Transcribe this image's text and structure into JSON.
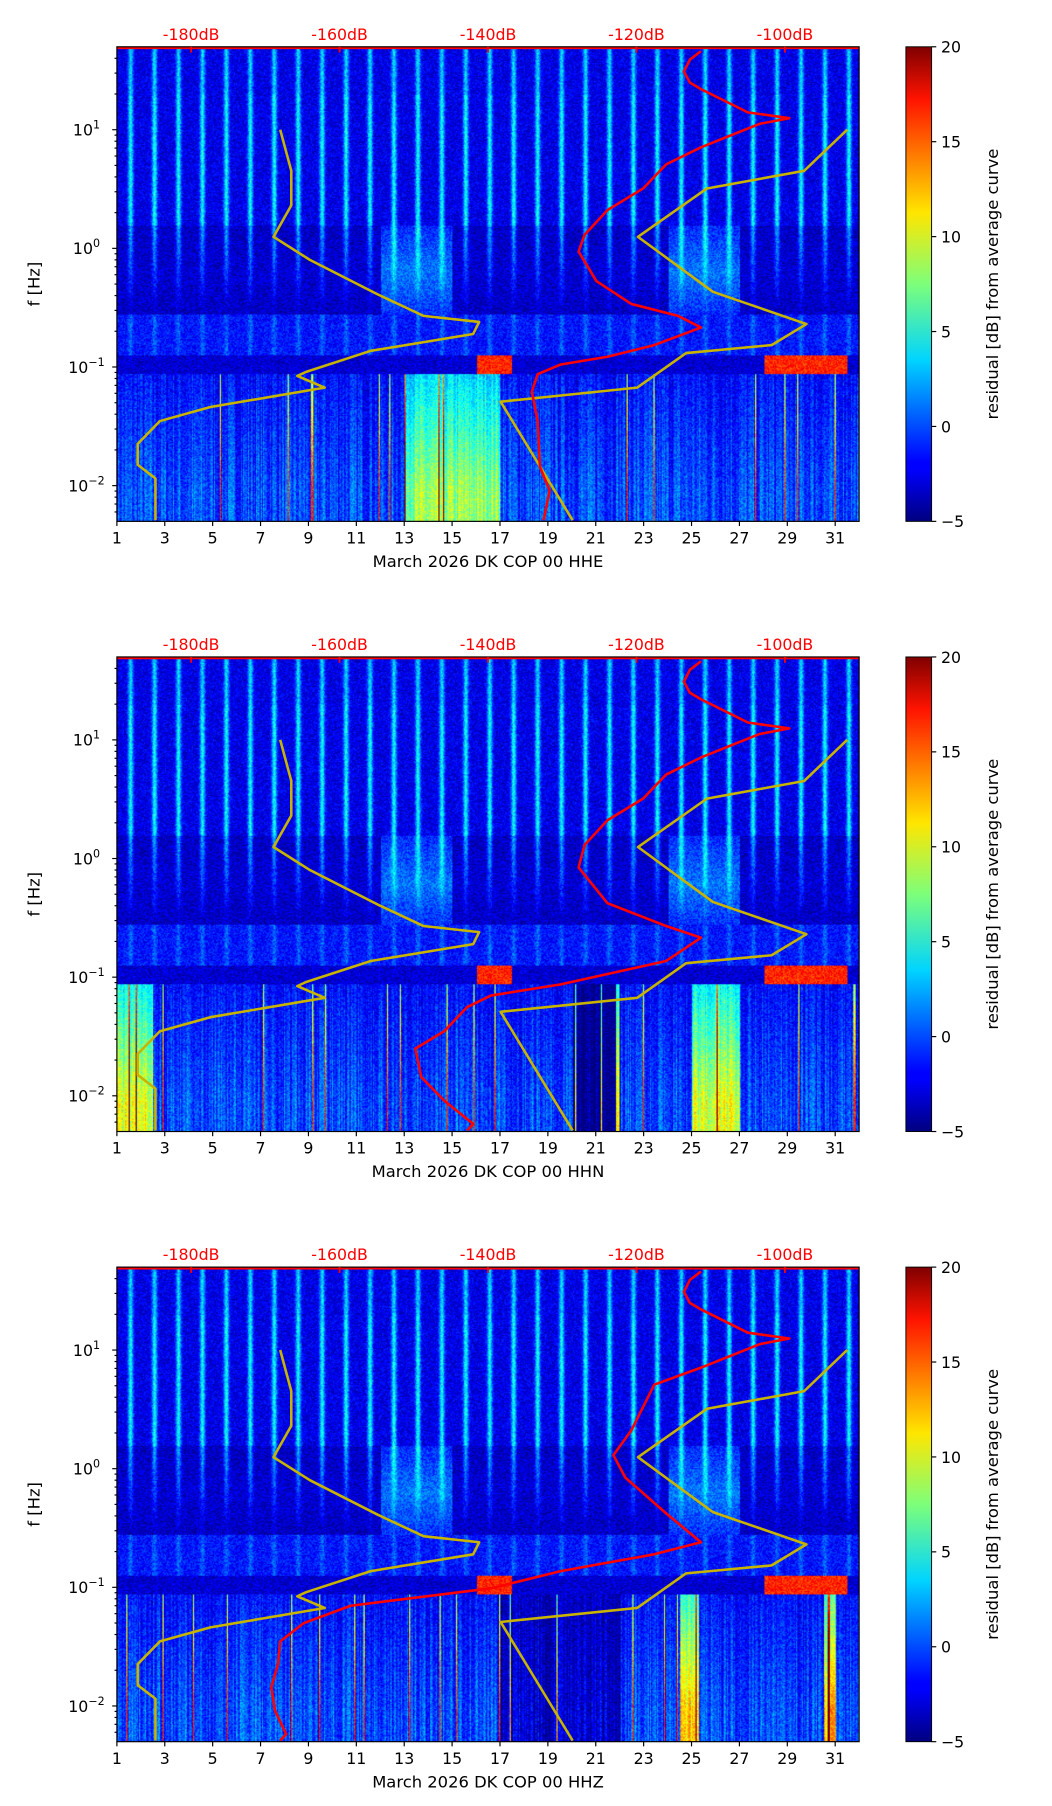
{
  "chart_data": {
    "type": "heatmap",
    "colorbar": {
      "label": "residual [dB] from average curve",
      "range": [
        -5,
        20
      ],
      "ticks": [
        "20",
        "15",
        "10",
        "5",
        "0",
        "−5"
      ],
      "tick_values": [
        20,
        15,
        10,
        5,
        0,
        -5
      ],
      "colormap": "jet"
    },
    "shared": {
      "ylabel": "f [Hz]",
      "ylim_hz": [
        0.005,
        50
      ],
      "yscale": "log",
      "yticks": [
        {
          "base": "10",
          "exp": "1",
          "value": 10
        },
        {
          "base": "10",
          "exp": "0",
          "value": 1
        },
        {
          "base": "10",
          "exp": "−1",
          "value": 0.1
        },
        {
          "base": "10",
          "exp": "−2",
          "value": 0.01
        }
      ],
      "xlim_day": [
        1,
        32
      ],
      "xticks": [
        "1",
        "3",
        "5",
        "7",
        "9",
        "11",
        "13",
        "15",
        "17",
        "19",
        "21",
        "23",
        "25",
        "27",
        "29",
        "31"
      ],
      "top_axis": {
        "range_db": [
          -190,
          -90
        ],
        "ticks": [
          "-180dB",
          "-160dB",
          "-140dB",
          "-120dB",
          "-100dB"
        ],
        "tick_values": [
          -180,
          -160,
          -140,
          -120,
          -100
        ],
        "color": "#ff0000"
      },
      "model_color": "#c8b400",
      "curve_color": "#ff0000",
      "low_noise_model": [
        [
          -168,
          10
        ],
        [
          -166.5,
          4.5
        ],
        [
          -166.5,
          2.3
        ],
        [
          -168.9,
          1.25
        ],
        [
          -164,
          0.8
        ],
        [
          -154.9,
          0.41
        ],
        [
          -148.7,
          0.27
        ],
        [
          -141.2,
          0.24
        ],
        [
          -142,
          0.19
        ],
        [
          -155.8,
          0.137
        ],
        [
          -164.5,
          0.091
        ],
        [
          -165.7,
          0.084
        ],
        [
          -162,
          0.067
        ],
        [
          -177.4,
          0.046
        ],
        [
          -184.2,
          0.035
        ],
        [
          -187.2,
          0.0225
        ],
        [
          -187.2,
          0.015
        ],
        [
          -184.8,
          0.0115
        ],
        [
          -184.8,
          0.0051
        ]
      ],
      "high_noise_model": [
        [
          -91.6,
          10
        ],
        [
          -97.4,
          4.5
        ],
        [
          -110.5,
          3.2
        ],
        [
          -119.8,
          1.25
        ],
        [
          -109.7,
          0.43
        ],
        [
          -97.1,
          0.23
        ],
        [
          -101.8,
          0.153
        ],
        [
          -113.3,
          0.131
        ],
        [
          -119.9,
          0.067
        ],
        [
          -138.3,
          0.051
        ],
        [
          -128.6,
          0.0051
        ]
      ]
    },
    "panels": [
      {
        "xlabel": "March 2026 DK COP 00 HHE",
        "median_curve": [
          [
            -111.3,
            46
          ],
          [
            -112.8,
            39
          ],
          [
            -113.6,
            31
          ],
          [
            -112.8,
            25
          ],
          [
            -111.3,
            22
          ],
          [
            -105,
            14
          ],
          [
            -99.4,
            12.5
          ],
          [
            -103.4,
            11.2
          ],
          [
            -111.3,
            7.1
          ],
          [
            -116,
            5.1
          ],
          [
            -119.1,
            3.2
          ],
          [
            -123.9,
            2.1
          ],
          [
            -127,
            1.3
          ],
          [
            -127.8,
            0.94
          ],
          [
            -125.4,
            0.53
          ],
          [
            -120.7,
            0.34
          ],
          [
            -114.4,
            0.27
          ],
          [
            -111.3,
            0.215
          ],
          [
            -117.6,
            0.153
          ],
          [
            -123.9,
            0.122
          ],
          [
            -130.2,
            0.105
          ],
          [
            -133.3,
            0.087
          ],
          [
            -134.1,
            0.062
          ],
          [
            -133.3,
            0.035
          ],
          [
            -133,
            0.0144
          ],
          [
            -131.7,
            0.0091
          ],
          [
            -132.5,
            0.0051
          ]
        ]
      },
      {
        "xlabel": "March 2026 DK COP 00 HHN",
        "median_curve": [
          [
            -111.3,
            46
          ],
          [
            -112.8,
            39
          ],
          [
            -113.6,
            31
          ],
          [
            -112.8,
            25
          ],
          [
            -111.3,
            22
          ],
          [
            -105,
            14
          ],
          [
            -99.4,
            12.5
          ],
          [
            -103.4,
            11.2
          ],
          [
            -111.3,
            7.1
          ],
          [
            -116,
            5.1
          ],
          [
            -119.1,
            3.2
          ],
          [
            -123.9,
            2.1
          ],
          [
            -127,
            1.3
          ],
          [
            -127.8,
            0.84
          ],
          [
            -123.9,
            0.42
          ],
          [
            -116,
            0.27
          ],
          [
            -111.3,
            0.215
          ],
          [
            -116,
            0.137
          ],
          [
            -130.2,
            0.087
          ],
          [
            -139.6,
            0.07
          ],
          [
            -142.8,
            0.056
          ],
          [
            -145.9,
            0.035
          ],
          [
            -149.8,
            0.025
          ],
          [
            -149,
            0.0144
          ],
          [
            -145.9,
            0.0091
          ],
          [
            -142,
            0.0058
          ],
          [
            -142.8,
            0.0051
          ]
        ]
      },
      {
        "xlabel": "March 2026 DK COP 00 HHZ",
        "median_curve": [
          [
            -111.3,
            46
          ],
          [
            -112.8,
            39
          ],
          [
            -113.6,
            31
          ],
          [
            -112.8,
            25
          ],
          [
            -111.3,
            22
          ],
          [
            -105,
            14
          ],
          [
            -99.4,
            12.5
          ],
          [
            -103.4,
            11.2
          ],
          [
            -111.3,
            7.1
          ],
          [
            -117.6,
            5.1
          ],
          [
            -120.7,
            2.1
          ],
          [
            -123.1,
            1.3
          ],
          [
            -121.5,
            0.84
          ],
          [
            -116,
            0.42
          ],
          [
            -111.3,
            0.24
          ],
          [
            -117.6,
            0.19
          ],
          [
            -130.2,
            0.137
          ],
          [
            -139.6,
            0.098
          ],
          [
            -158.5,
            0.07
          ],
          [
            -164.8,
            0.05
          ],
          [
            -168,
            0.035
          ],
          [
            -168.3,
            0.0225
          ],
          [
            -169.2,
            0.0144
          ],
          [
            -168.7,
            0.0091
          ],
          [
            -167.2,
            0.0058
          ],
          [
            -168,
            0.0051
          ]
        ]
      }
    ]
  }
}
